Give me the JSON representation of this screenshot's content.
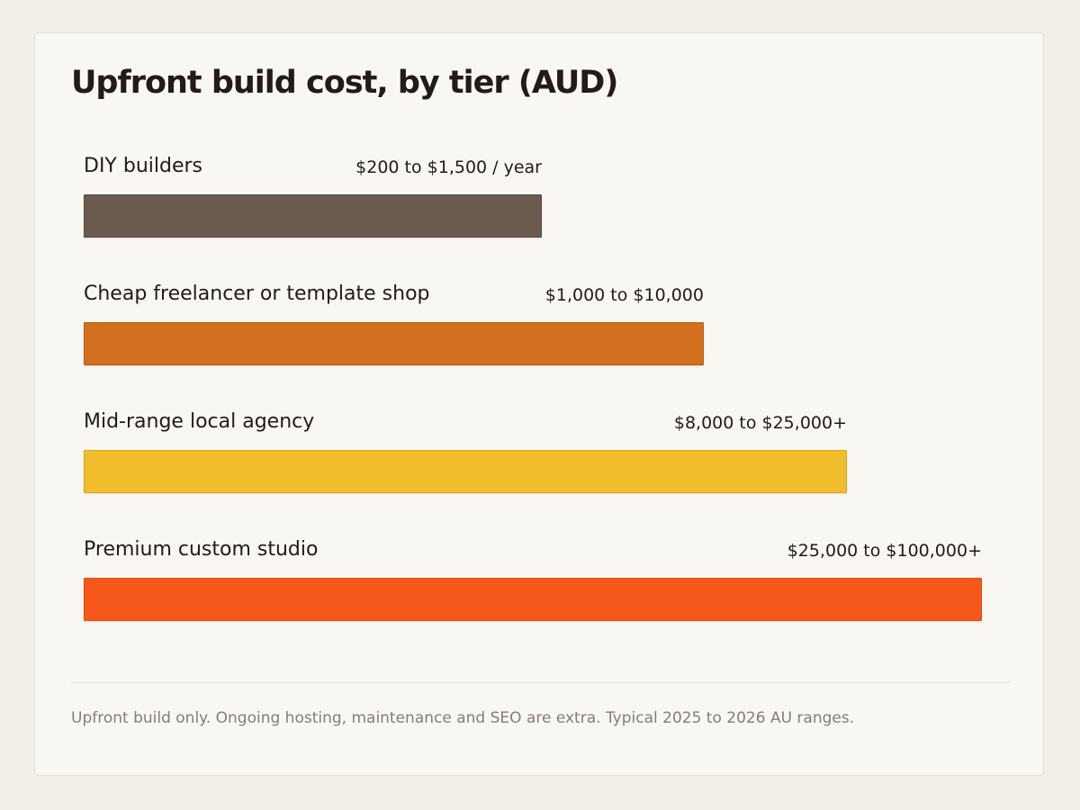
{
  "title": "Upfront build cost, by tier (AUD)",
  "footnote": "Upfront build only. Ongoing hosting, maintenance and SEO are extra. Typical 2025 to 2026 AU ranges.",
  "chart_data": {
    "type": "bar",
    "orientation": "horizontal",
    "title": "Upfront build cost, by tier (AUD)",
    "categories": [
      "DIY builders",
      "Cheap freelancer or template shop",
      "Mid-range local agency",
      "Premium custom studio"
    ],
    "value_labels": [
      "$200 to $1,500 / year",
      "$1,000 to $10,000",
      "$8,000 to $25,000+",
      "$25,000 to $100,000+"
    ],
    "values": [
      0.51,
      0.69,
      0.85,
      1.0
    ],
    "colors": [
      "#6b5a50",
      "#d2701f",
      "#f0bd2d",
      "#f4581a"
    ],
    "border_colors": [
      "#5a4a41",
      "#b85d14",
      "#d9a41f",
      "#dc4a12"
    ],
    "grid": false,
    "legend": "none"
  }
}
